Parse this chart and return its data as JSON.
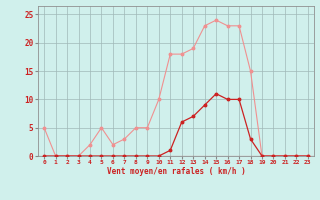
{
  "x": [
    0,
    1,
    2,
    3,
    4,
    5,
    6,
    7,
    8,
    9,
    10,
    11,
    12,
    13,
    14,
    15,
    16,
    17,
    18,
    19,
    20,
    21,
    22,
    23
  ],
  "rafales": [
    5,
    0,
    0,
    0,
    2,
    5,
    2,
    3,
    5,
    5,
    10,
    18,
    18,
    19,
    23,
    24,
    23,
    23,
    15,
    0,
    0,
    0,
    0,
    0
  ],
  "moyen": [
    0,
    0,
    0,
    0,
    0,
    0,
    0,
    0,
    0,
    0,
    0,
    1,
    6,
    7,
    9,
    11,
    10,
    10,
    3,
    0,
    0,
    0,
    0,
    0
  ],
  "color_rafales": "#f09090",
  "color_moyen": "#cc2222",
  "bg_color": "#d0f0ec",
  "grid_color": "#a0b8b8",
  "axis_color": "#cc2222",
  "xlabel": "Vent moyen/en rafales ( km/h )",
  "ylabel_ticks": [
    0,
    5,
    10,
    15,
    20,
    25
  ],
  "xlim": [
    -0.5,
    23.5
  ],
  "ylim": [
    0,
    26.5
  ]
}
